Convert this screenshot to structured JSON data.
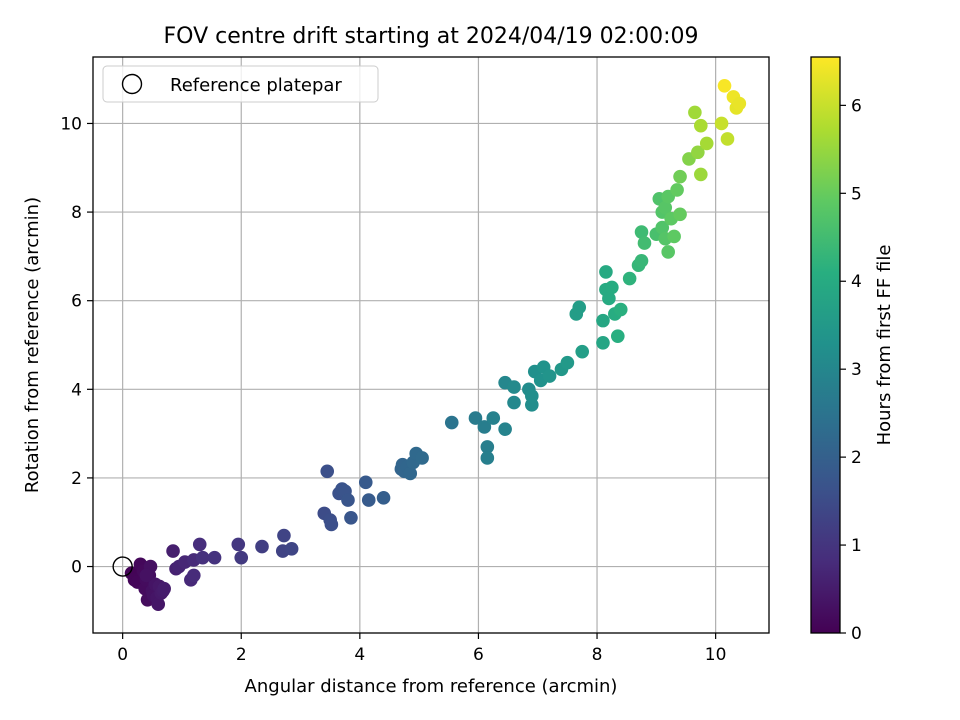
{
  "chart_data": {
    "type": "scatter",
    "title": "FOV centre drift starting at 2024/04/19 02:00:09",
    "xlabel": "Angular distance from reference (arcmin)",
    "ylabel": "Rotation from reference (arcmin)",
    "xlim": [
      -0.5,
      10.9
    ],
    "ylim": [
      -1.5,
      11.5
    ],
    "xticks": [
      0,
      2,
      4,
      6,
      8,
      10
    ],
    "yticks": [
      0,
      2,
      4,
      6,
      8,
      10
    ],
    "grid": true,
    "legend": {
      "position": "top-left",
      "entries": [
        "Reference platepar"
      ]
    },
    "reference_point": {
      "x": 0,
      "y": 0
    },
    "colorbar": {
      "label": "Hours from first FF file",
      "range": [
        0,
        6.55
      ],
      "ticks": [
        0,
        1,
        2,
        3,
        4,
        5,
        6
      ],
      "colormap": "viridis"
    },
    "points": [
      [
        0.15,
        -0.15,
        0.05
      ],
      [
        0.2,
        -0.3,
        0.08
      ],
      [
        0.25,
        -0.35,
        0.1
      ],
      [
        0.3,
        0.05,
        0.12
      ],
      [
        0.35,
        -0.1,
        0.15
      ],
      [
        0.38,
        -0.5,
        0.18
      ],
      [
        0.4,
        -0.3,
        0.2
      ],
      [
        0.42,
        -0.75,
        0.22
      ],
      [
        0.45,
        -0.2,
        0.25
      ],
      [
        0.47,
        0.0,
        0.27
      ],
      [
        0.5,
        -0.55,
        0.3
      ],
      [
        0.52,
        -0.65,
        0.32
      ],
      [
        0.55,
        -0.4,
        0.35
      ],
      [
        0.58,
        -0.7,
        0.37
      ],
      [
        0.6,
        -0.85,
        0.4
      ],
      [
        0.62,
        -0.45,
        0.42
      ],
      [
        0.65,
        -0.6,
        0.45
      ],
      [
        0.68,
        -0.55,
        0.48
      ],
      [
        0.7,
        -0.5,
        0.5
      ],
      [
        0.4,
        -0.2,
        0.3
      ],
      [
        0.85,
        0.35,
        0.55
      ],
      [
        0.9,
        -0.05,
        0.6
      ],
      [
        0.95,
        0.0,
        0.65
      ],
      [
        1.05,
        0.1,
        0.7
      ],
      [
        1.15,
        -0.3,
        0.75
      ],
      [
        1.2,
        0.15,
        0.78
      ],
      [
        1.2,
        -0.2,
        0.8
      ],
      [
        1.3,
        0.5,
        0.85
      ],
      [
        1.35,
        0.2,
        0.9
      ],
      [
        1.55,
        0.2,
        0.95
      ],
      [
        1.95,
        0.5,
        1.05
      ],
      [
        2.0,
        0.2,
        1.1
      ],
      [
        2.35,
        0.45,
        1.2
      ],
      [
        2.7,
        0.35,
        1.3
      ],
      [
        2.72,
        0.7,
        1.32
      ],
      [
        2.85,
        0.4,
        1.35
      ],
      [
        3.4,
        1.2,
        1.5
      ],
      [
        3.5,
        1.05,
        1.55
      ],
      [
        3.52,
        0.95,
        1.57
      ],
      [
        3.45,
        2.15,
        1.6
      ],
      [
        3.65,
        1.65,
        1.65
      ],
      [
        3.7,
        1.75,
        1.67
      ],
      [
        3.75,
        1.7,
        1.7
      ],
      [
        3.8,
        1.5,
        1.72
      ],
      [
        3.85,
        1.1,
        1.75
      ],
      [
        4.1,
        1.9,
        1.85
      ],
      [
        4.15,
        1.5,
        1.87
      ],
      [
        4.4,
        1.55,
        1.95
      ],
      [
        4.7,
        2.2,
        2.1
      ],
      [
        4.72,
        2.3,
        2.12
      ],
      [
        4.75,
        2.15,
        2.14
      ],
      [
        4.8,
        2.25,
        2.16
      ],
      [
        4.85,
        2.1,
        2.18
      ],
      [
        4.9,
        2.35,
        2.2
      ],
      [
        4.95,
        2.55,
        2.22
      ],
      [
        5.05,
        2.45,
        2.25
      ],
      [
        5.55,
        3.25,
        2.5
      ],
      [
        5.95,
        3.35,
        2.7
      ],
      [
        6.1,
        3.15,
        2.75
      ],
      [
        6.15,
        2.7,
        2.78
      ],
      [
        6.15,
        2.45,
        2.8
      ],
      [
        6.25,
        3.35,
        2.85
      ],
      [
        6.45,
        3.1,
        2.9
      ],
      [
        6.45,
        4.15,
        3.0
      ],
      [
        6.6,
        3.7,
        3.05
      ],
      [
        6.6,
        4.05,
        3.08
      ],
      [
        6.85,
        4.0,
        3.15
      ],
      [
        6.9,
        3.65,
        3.18
      ],
      [
        6.9,
        3.85,
        3.2
      ],
      [
        6.95,
        4.4,
        3.25
      ],
      [
        7.05,
        4.2,
        3.3
      ],
      [
        7.1,
        4.5,
        3.32
      ],
      [
        7.2,
        4.3,
        3.35
      ],
      [
        7.4,
        4.45,
        3.45
      ],
      [
        7.5,
        4.6,
        3.5
      ],
      [
        7.65,
        5.7,
        3.6
      ],
      [
        7.7,
        5.85,
        3.62
      ],
      [
        7.75,
        4.85,
        3.65
      ],
      [
        8.1,
        5.05,
        3.85
      ],
      [
        8.1,
        5.55,
        3.88
      ],
      [
        8.15,
        6.65,
        3.95
      ],
      [
        8.15,
        6.25,
        3.97
      ],
      [
        8.2,
        6.05,
        3.99
      ],
      [
        8.25,
        6.3,
        4.0
      ],
      [
        8.3,
        5.7,
        4.05
      ],
      [
        8.35,
        5.2,
        4.1
      ],
      [
        8.4,
        5.8,
        4.12
      ],
      [
        8.55,
        6.5,
        4.2
      ],
      [
        8.7,
        6.8,
        4.3
      ],
      [
        8.75,
        6.9,
        4.35
      ],
      [
        8.75,
        7.55,
        4.45
      ],
      [
        8.8,
        7.3,
        4.5
      ],
      [
        9.0,
        7.5,
        4.6
      ],
      [
        9.05,
        8.3,
        4.7
      ],
      [
        9.1,
        7.65,
        4.72
      ],
      [
        9.1,
        8.0,
        4.75
      ],
      [
        9.15,
        7.4,
        4.77
      ],
      [
        9.15,
        8.1,
        4.8
      ],
      [
        9.2,
        7.1,
        4.82
      ],
      [
        9.2,
        8.35,
        4.85
      ],
      [
        9.25,
        7.85,
        4.88
      ],
      [
        9.3,
        7.45,
        4.9
      ],
      [
        9.35,
        8.5,
        4.95
      ],
      [
        9.4,
        7.95,
        4.97
      ],
      [
        9.4,
        8.8,
        5.1
      ],
      [
        9.55,
        9.2,
        5.3
      ],
      [
        9.65,
        10.25,
        5.6
      ],
      [
        9.7,
        9.35,
        5.45
      ],
      [
        9.75,
        9.95,
        5.7
      ],
      [
        9.75,
        8.85,
        5.55
      ],
      [
        9.85,
        9.55,
        5.65
      ],
      [
        10.1,
        10.0,
        6.0
      ],
      [
        10.15,
        10.85,
        6.5
      ],
      [
        10.2,
        9.65,
        5.95
      ],
      [
        10.3,
        10.6,
        6.4
      ],
      [
        10.35,
        10.35,
        6.3
      ],
      [
        10.4,
        10.45,
        6.35
      ]
    ]
  }
}
